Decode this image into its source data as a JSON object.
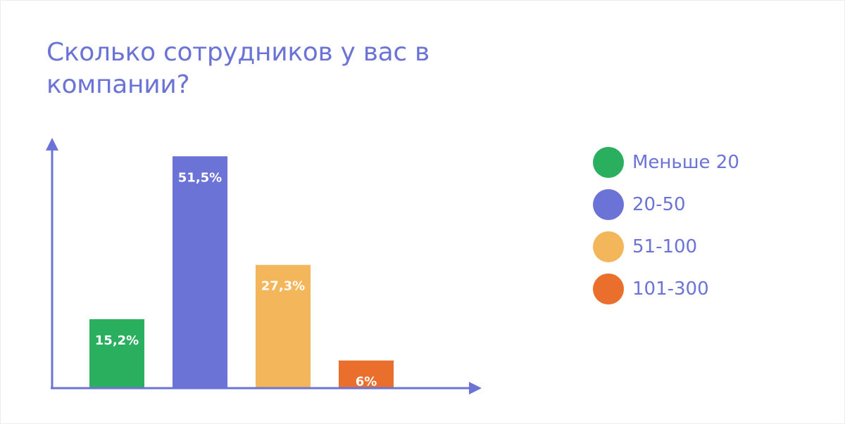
{
  "title": "Сколько сотрудников у вас в компании?",
  "colors": {
    "axis": "#6b74d6",
    "text": "#6b74d6",
    "label_text": "#ffffff"
  },
  "legend": {
    "position": "right",
    "items": [
      {
        "label": "Меньше 20",
        "color": "#2aaf5f"
      },
      {
        "label": "20-50",
        "color": "#6b74d6"
      },
      {
        "label": "51-100",
        "color": "#f4b65a"
      },
      {
        "label": "101-300",
        "color": "#ea6f2c"
      }
    ]
  },
  "chart_data": {
    "type": "bar",
    "title": "Сколько сотрудников у вас в компании?",
    "categories": [
      "Меньше 20",
      "20-50",
      "51-100",
      "101-300"
    ],
    "values": [
      15.2,
      51.5,
      27.3,
      6
    ],
    "data_labels": [
      "15,2%",
      "51,5%",
      "27,3%",
      "6%"
    ],
    "colors": [
      "#2aaf5f",
      "#6b74d6",
      "#f4b65a",
      "#ea6f2c"
    ],
    "unit": "%",
    "ylim": [
      0,
      60
    ],
    "grid": false,
    "legend": "right"
  }
}
